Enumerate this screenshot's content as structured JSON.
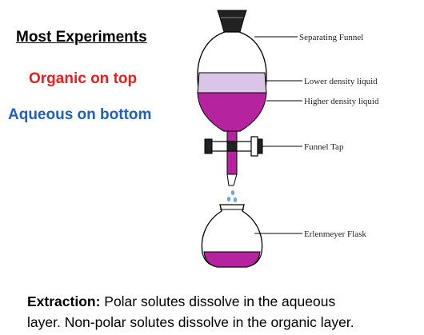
{
  "left_panel": {
    "heading": "Most Experiments",
    "organic_line": "Organic on top",
    "aqueous_line": "Aqueous on bottom"
  },
  "diagram": {
    "labels": {
      "separating_funnel": "Separating Funnel",
      "lower_density": "Lower density liquid",
      "higher_density": "Higher density liquid",
      "funnel_tap": "Funnel Tap",
      "flask": "Erlenmeyer Flask"
    },
    "colors": {
      "lower_layer": "#d9c6e6",
      "higher_layer": "#b5239e",
      "stopper": "#222222",
      "drops": "#6aa6e0"
    }
  },
  "caption": {
    "term": "Extraction:",
    "line1": " Polar solutes dissolve in the aqueous",
    "line2": "layer.  Non-polar solutes dissolve in the organic layer."
  }
}
